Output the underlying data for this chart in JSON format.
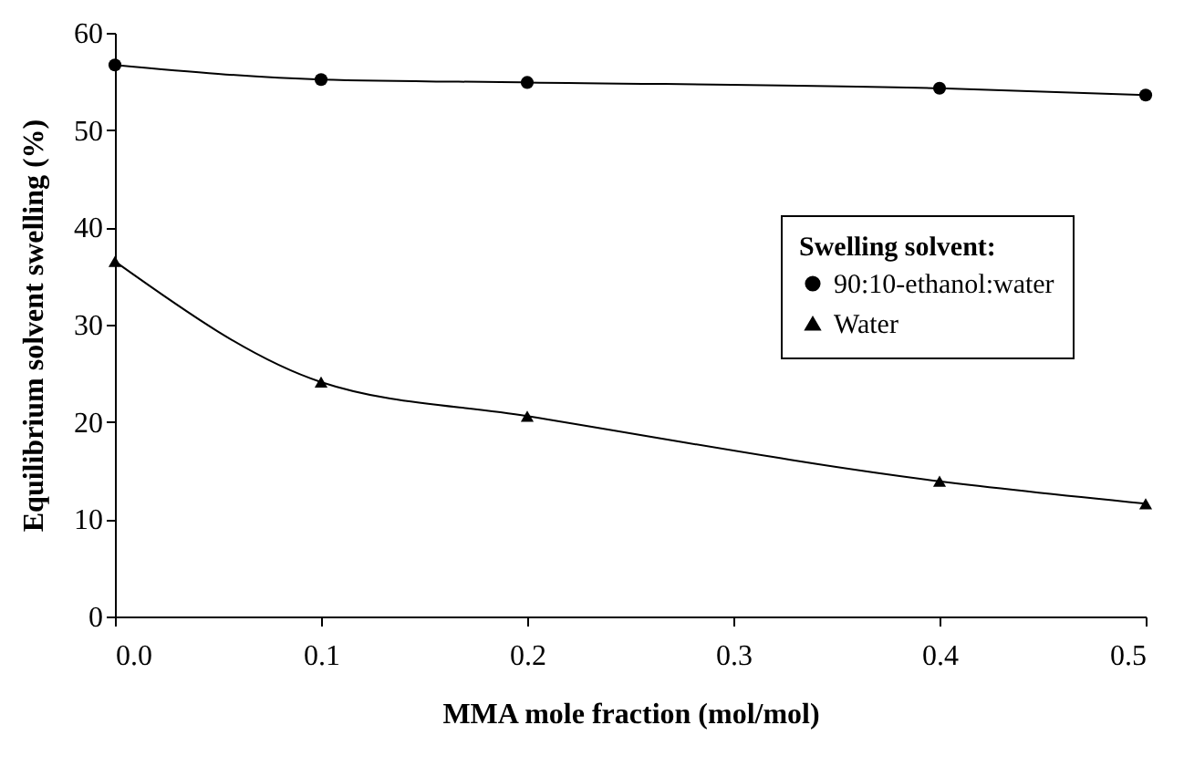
{
  "chart_data": {
    "type": "line",
    "xlabel": "MMA mole fraction (mol/mol)",
    "ylabel": "Equilibrium solvent  swelling (%)",
    "legend_title": "Swelling solvent:",
    "x": [
      0,
      0.1,
      0.2,
      0.4,
      0.5
    ],
    "series": [
      {
        "name": "90:10-ethanol:water",
        "color": "#000000",
        "marker": "circle",
        "values": [
          56.7,
          55.2,
          54.9,
          54.3,
          53.6
        ]
      },
      {
        "name": "Water",
        "color": "#000000",
        "marker": "triangle",
        "values": [
          36.5,
          24.1,
          20.6,
          13.9,
          11.6
        ]
      }
    ],
    "xlim": [
      0,
      0.5
    ],
    "xticks": [
      {
        "value": 0,
        "label": "0.0"
      },
      0.1,
      0.2,
      0.3,
      0.4,
      0.5
    ],
    "ylim": [
      0,
      60
    ],
    "yticks": [
      0,
      10,
      20,
      30,
      40,
      50,
      60
    ],
    "grid": false,
    "legend": "right",
    "line_style": "solid"
  }
}
